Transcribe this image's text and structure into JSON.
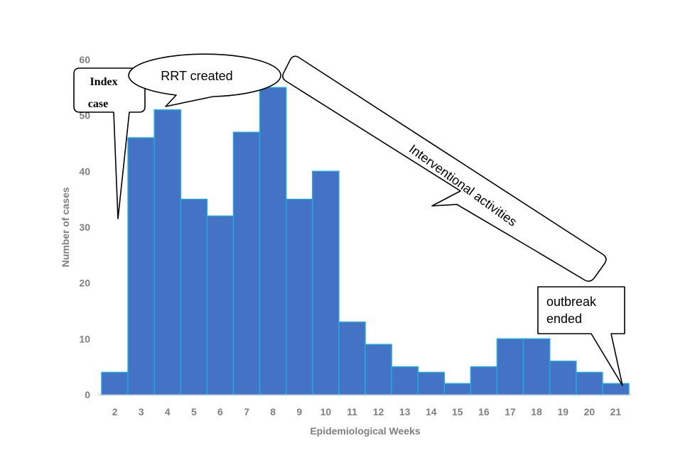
{
  "chart_data": {
    "type": "bar",
    "categories": [
      "2",
      "3",
      "4",
      "5",
      "6",
      "7",
      "8",
      "9",
      "10",
      "11",
      "12",
      "13",
      "14",
      "15",
      "16",
      "17",
      "18",
      "19",
      "20",
      "21"
    ],
    "values": [
      4,
      46,
      51,
      35,
      32,
      47,
      55,
      35,
      40,
      13,
      9,
      5,
      4,
      2,
      5,
      10,
      10,
      6,
      4,
      2
    ],
    "xlabel": "Epidemiological Weeks",
    "ylabel": "Number of cases",
    "ylim": [
      0,
      60
    ],
    "yticks": [
      0,
      10,
      20,
      30,
      40,
      50,
      60
    ],
    "grid": false,
    "legend": "none",
    "annotations": {
      "index_case_line1": "Index",
      "index_case_line2": "case",
      "rrt": "RRT created",
      "interventions": "Interventional activities",
      "outbreak_line1": "outbreak",
      "outbreak_line2": "ended"
    },
    "colors": {
      "bar_fill": "#4472c4",
      "bar_edge": "#1fa8e0",
      "axis_text": "#7f7f7f"
    }
  }
}
